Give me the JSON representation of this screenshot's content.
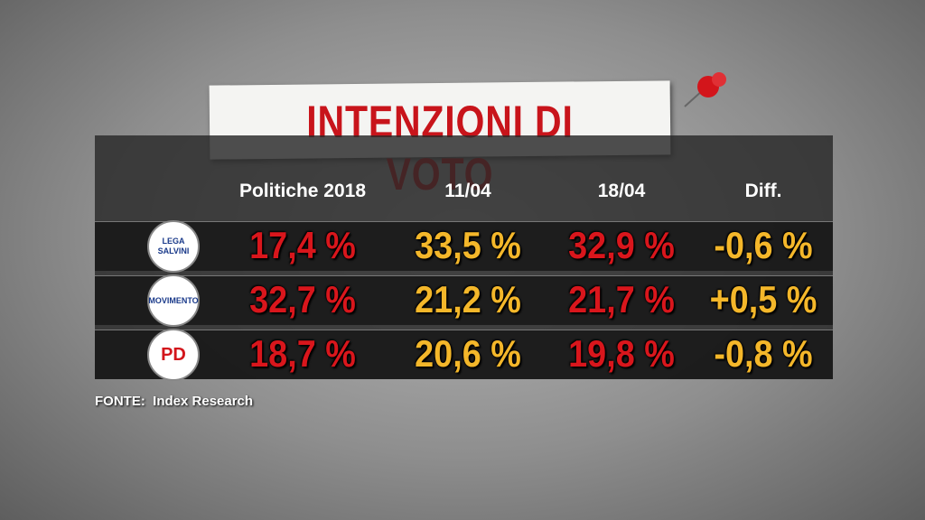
{
  "header": {
    "title": "INTENZIONI DI VOTO"
  },
  "table": {
    "columns": [
      "Politiche 2018",
      "11/04",
      "18/04",
      "Diff."
    ],
    "rows": [
      {
        "logo": [
          "LEGA",
          "SALVINI"
        ],
        "cells": [
          "17,4 %",
          "33,5 %",
          "32,9 %",
          "-0,6 %"
        ]
      },
      {
        "logo": [
          "MOVIMENTO"
        ],
        "cells": [
          "32,7 %",
          "21,2 %",
          "21,7 %",
          "+0,5 %"
        ]
      },
      {
        "logo": [
          "PD"
        ],
        "cells": [
          "18,7 %",
          "20,6 %",
          "19,8 %",
          "-0,8 %"
        ]
      }
    ]
  },
  "footer": {
    "source_label": "FONTE:",
    "source": "Index Research"
  }
}
